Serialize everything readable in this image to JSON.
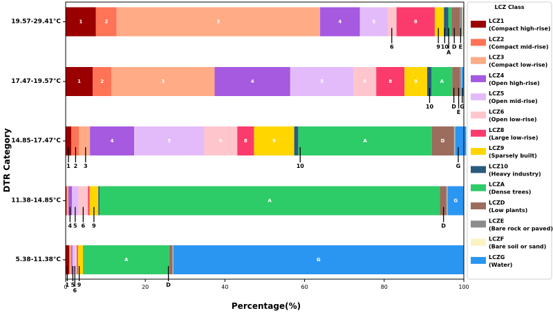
{
  "chart_data": {
    "type": "bar",
    "orientation": "horizontal",
    "stacked": true,
    "xlabel": "Percentage(%)",
    "ylabel": "DTR Category",
    "xlim": [
      0,
      100
    ],
    "xticks": [
      0,
      20,
      40,
      60,
      80,
      100
    ],
    "grid": false,
    "legend_position": "right",
    "legend_title": "LCZ Class",
    "classes": [
      {
        "key": "1",
        "code": "LCZ1",
        "name": "(Compact high-rise)",
        "color": "#9b0000"
      },
      {
        "key": "2",
        "code": "LCZ2",
        "name": "(Compact mid-rise)",
        "color": "#ff7456"
      },
      {
        "key": "3",
        "code": "LCZ3",
        "name": "(Compact low-rise)",
        "color": "#ffab86"
      },
      {
        "key": "4",
        "code": "LCZ4",
        "name": "(Open high-rise)",
        "color": "#a55ae0"
      },
      {
        "key": "5",
        "code": "LCZ5",
        "name": "(Open mid-rise)",
        "color": "#e3bbfb"
      },
      {
        "key": "6",
        "code": "LCZ6",
        "name": "(Open low-rise)",
        "color": "#ffc5cd"
      },
      {
        "key": "8",
        "code": "LCZ8",
        "name": "(Large low-rise)",
        "color": "#fb3b6c"
      },
      {
        "key": "9",
        "code": "LCZ9",
        "name": "(Sparsely built)",
        "color": "#ffd600"
      },
      {
        "key": "10",
        "code": "LCZ10",
        "name": "(Heavy industry)",
        "color": "#2c5a7c"
      },
      {
        "key": "A",
        "code": "LCZA",
        "name": "(Dense trees)",
        "color": "#2ecb69"
      },
      {
        "key": "D",
        "code": "LCZD",
        "name": "(Low plants)",
        "color": "#9c6c5d"
      },
      {
        "key": "E",
        "code": "LCZE",
        "name": "(Bare rock or paved)",
        "color": "#8c8c8c"
      },
      {
        "key": "F",
        "code": "LCZF",
        "name": "(Bare soil or sand)",
        "color": "#fdf2c2"
      },
      {
        "key": "G",
        "code": "LCZG",
        "name": "(Water)",
        "color": "#2b96f2"
      }
    ],
    "categories": [
      {
        "label": "19.57-29.41°C",
        "segments": [
          {
            "key": "1",
            "value": 7.6
          },
          {
            "key": "2",
            "value": 5.2
          },
          {
            "key": "3",
            "value": 51.1
          },
          {
            "key": "4",
            "value": 10.0
          },
          {
            "key": "5",
            "value": 7.0
          },
          {
            "key": "6",
            "value": 2.2
          },
          {
            "key": "8",
            "value": 9.6
          },
          {
            "key": "9",
            "value": 2.3
          },
          {
            "key": "10",
            "value": 1.1
          },
          {
            "key": "A",
            "value": 0.8
          },
          {
            "key": "D",
            "value": 2.1
          },
          {
            "key": "E",
            "value": 0.6
          },
          {
            "key": "F",
            "value": 0.2
          },
          {
            "key": "G",
            "value": 0.2
          }
        ],
        "inside_labels": [
          "1",
          "2",
          "3",
          "4",
          "5",
          "8"
        ],
        "callouts": [
          {
            "text": "6",
            "at": 81.9,
            "row": 0
          },
          {
            "text": "9",
            "at": 93.6,
            "row": 0
          },
          {
            "text": "10",
            "at": 95.2,
            "row": 0
          },
          {
            "text": "A",
            "at": 96.2,
            "row": 1
          },
          {
            "text": "D",
            "at": 97.6,
            "row": 0
          },
          {
            "text": "E",
            "at": 99.2,
            "row": 0
          }
        ]
      },
      {
        "label": "17.47-19.57°C",
        "segments": [
          {
            "key": "1",
            "value": 6.8
          },
          {
            "key": "2",
            "value": 4.7
          },
          {
            "key": "3",
            "value": 25.9
          },
          {
            "key": "4",
            "value": 19.0
          },
          {
            "key": "5",
            "value": 15.9
          },
          {
            "key": "6",
            "value": 5.7
          },
          {
            "key": "8",
            "value": 7.1
          },
          {
            "key": "9",
            "value": 5.7
          },
          {
            "key": "10",
            "value": 1.1
          },
          {
            "key": "A",
            "value": 5.2
          },
          {
            "key": "D",
            "value": 1.9
          },
          {
            "key": "E",
            "value": 0.4
          },
          {
            "key": "F",
            "value": 0.1
          },
          {
            "key": "G",
            "value": 0.5
          }
        ],
        "inside_labels": [
          "1",
          "2",
          "3",
          "4",
          "5",
          "6",
          "8",
          "9",
          "A"
        ],
        "callouts": [
          {
            "text": "10",
            "at": 91.4,
            "row": 0
          },
          {
            "text": "D",
            "at": 97.5,
            "row": 0
          },
          {
            "text": "E",
            "at": 98.7,
            "row": 1
          },
          {
            "text": "G",
            "at": 99.6,
            "row": 0
          }
        ]
      },
      {
        "label": "14.85-17.47°C",
        "segments": [
          {
            "key": "1",
            "value": 1.4
          },
          {
            "key": "2",
            "value": 1.9
          },
          {
            "key": "3",
            "value": 2.8
          },
          {
            "key": "4",
            "value": 11.1
          },
          {
            "key": "5",
            "value": 17.6
          },
          {
            "key": "6",
            "value": 8.3
          },
          {
            "key": "8",
            "value": 4.2
          },
          {
            "key": "9",
            "value": 10.1
          },
          {
            "key": "10",
            "value": 1.0
          },
          {
            "key": "A",
            "value": 33.6
          },
          {
            "key": "D",
            "value": 5.4
          },
          {
            "key": "E",
            "value": 0.3
          },
          {
            "key": "F",
            "value": 0.1
          },
          {
            "key": "G",
            "value": 2.8
          }
        ],
        "inside_labels": [
          "4",
          "5",
          "6",
          "8",
          "9",
          "A",
          "D"
        ],
        "callouts": [
          {
            "text": "1",
            "at": 0.7,
            "row": 0
          },
          {
            "text": "2",
            "at": 2.5,
            "row": 0
          },
          {
            "text": "3",
            "at": 5.0,
            "row": 0
          },
          {
            "text": "10",
            "at": 58.9,
            "row": 0
          },
          {
            "text": "G",
            "at": 98.6,
            "row": 0
          }
        ]
      },
      {
        "label": "11.38-14.85°C",
        "segments": [
          {
            "key": "1",
            "value": 0.2
          },
          {
            "key": "2",
            "value": 0.2
          },
          {
            "key": "3",
            "value": 0.3
          },
          {
            "key": "4",
            "value": 0.9
          },
          {
            "key": "5",
            "value": 1.6
          },
          {
            "key": "6",
            "value": 2.4
          },
          {
            "key": "8",
            "value": 0.4
          },
          {
            "key": "9",
            "value": 2.2
          },
          {
            "key": "10",
            "value": 0.3
          },
          {
            "key": "A",
            "value": 85.5
          },
          {
            "key": "D",
            "value": 1.6
          },
          {
            "key": "E",
            "value": 0.2
          },
          {
            "key": "F",
            "value": 0.1
          },
          {
            "key": "G",
            "value": 4.1
          }
        ],
        "inside_labels": [
          "A",
          "G"
        ],
        "callouts": [
          {
            "text": "4",
            "at": 1.1,
            "row": 0
          },
          {
            "text": "5",
            "at": 2.4,
            "row": 0
          },
          {
            "text": "6",
            "at": 4.4,
            "row": 0
          },
          {
            "text": "9",
            "at": 7.1,
            "row": 0
          },
          {
            "text": "D",
            "at": 94.9,
            "row": 0
          }
        ]
      },
      {
        "label": "5.38-11.38°C",
        "segments": [
          {
            "key": "1",
            "value": 0.9
          },
          {
            "key": "2",
            "value": 0.2
          },
          {
            "key": "3",
            "value": 0.3
          },
          {
            "key": "4",
            "value": 0.3
          },
          {
            "key": "5",
            "value": 0.6
          },
          {
            "key": "6",
            "value": 0.5
          },
          {
            "key": "8",
            "value": 0.3
          },
          {
            "key": "9",
            "value": 1.3
          },
          {
            "key": "10",
            "value": 0.1
          },
          {
            "key": "A",
            "value": 21.5
          },
          {
            "key": "D",
            "value": 0.8
          },
          {
            "key": "E",
            "value": 0.1
          },
          {
            "key": "F",
            "value": 0.1
          },
          {
            "key": "G",
            "value": 73.0
          }
        ],
        "inside_labels": [
          "A",
          "G"
        ],
        "callouts": [
          {
            "text": "1",
            "at": 0.4,
            "row": 0
          },
          {
            "text": "5",
            "at": 1.8,
            "row": 0
          },
          {
            "text": "6",
            "at": 2.3,
            "row": 1
          },
          {
            "text": "9",
            "at": 3.4,
            "row": 0
          },
          {
            "text": "D",
            "at": 25.8,
            "row": 0
          }
        ]
      }
    ]
  }
}
